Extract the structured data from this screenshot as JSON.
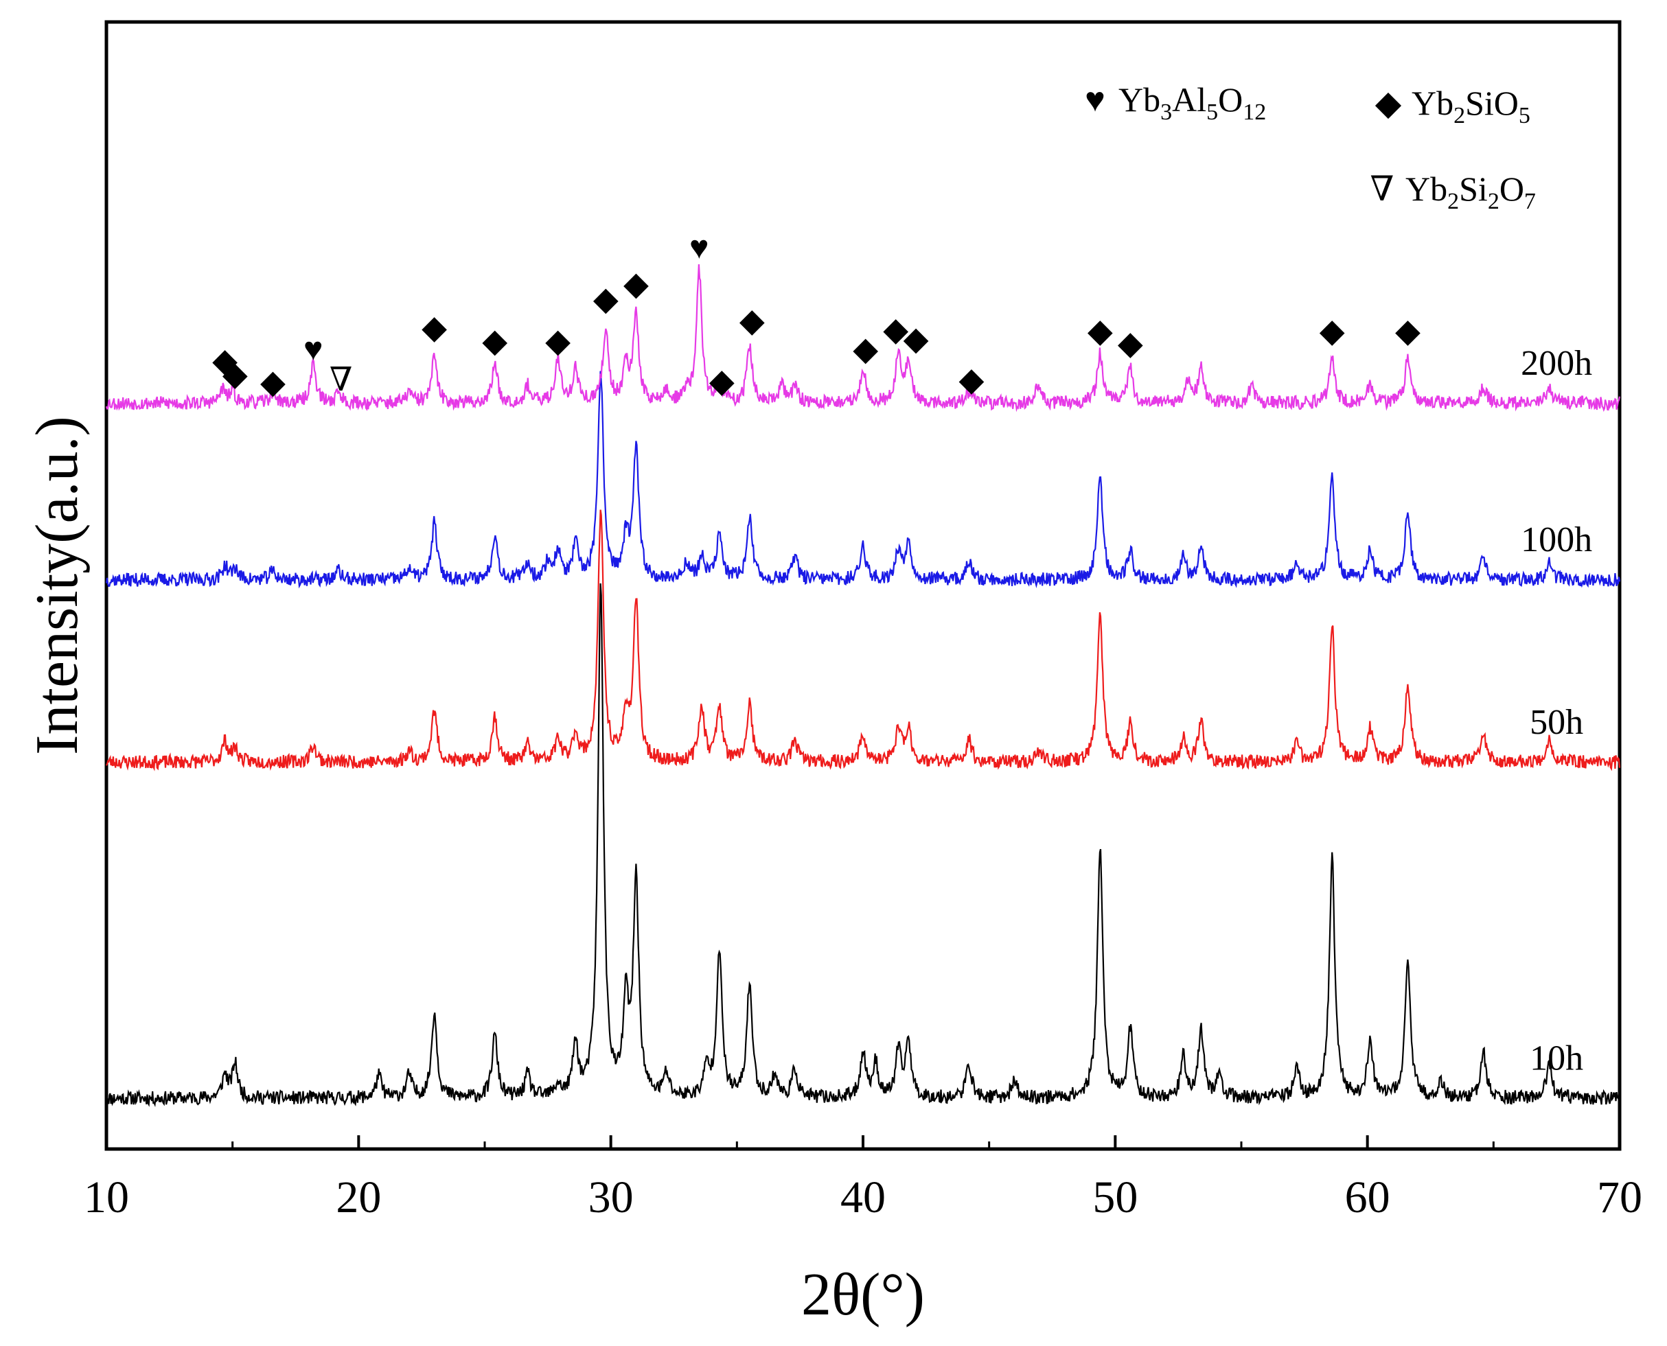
{
  "chart_data": {
    "type": "line",
    "title": "",
    "xlabel": "2θ(°)",
    "ylabel": "Intensity(a.u.)",
    "xlim": [
      10,
      70
    ],
    "x_ticks": [
      10,
      20,
      30,
      40,
      50,
      60,
      70
    ],
    "grid": false,
    "legend": [
      {
        "symbol": "♥",
        "name": "Yb3Al5O12",
        "parts": [
          [
            "Yb",
            ""
          ],
          [
            "3",
            "sub"
          ],
          [
            "Al",
            ""
          ],
          [
            "5",
            "sub"
          ],
          [
            "O",
            ""
          ],
          [
            "12",
            "sub"
          ]
        ]
      },
      {
        "symbol": "◆",
        "name": "Yb2SiO5",
        "parts": [
          [
            "Yb",
            ""
          ],
          [
            "2",
            "sub"
          ],
          [
            "SiO",
            ""
          ],
          [
            "5",
            "sub"
          ]
        ]
      },
      {
        "symbol": "∇",
        "name": "Yb2Si2O7",
        "parts": [
          [
            "Yb",
            ""
          ],
          [
            "2",
            "sub"
          ],
          [
            "Si",
            ""
          ],
          [
            "2",
            "sub"
          ],
          [
            "O",
            ""
          ],
          [
            "7",
            "sub"
          ]
        ]
      }
    ],
    "series": [
      {
        "name": "10h",
        "color": "#000000",
        "baseline": 0.0,
        "noise": 0.006,
        "seed": 11,
        "peaks": [
          [
            14.7,
            0.02
          ],
          [
            15.1,
            0.03
          ],
          [
            20.8,
            0.02
          ],
          [
            22.0,
            0.02
          ],
          [
            23.0,
            0.075
          ],
          [
            25.4,
            0.055
          ],
          [
            26.7,
            0.02
          ],
          [
            27.9,
            0.01
          ],
          [
            28.6,
            0.045
          ],
          [
            29.6,
            0.45
          ],
          [
            30.6,
            0.08
          ],
          [
            31.0,
            0.19
          ],
          [
            32.2,
            0.02
          ],
          [
            33.8,
            0.025
          ],
          [
            34.3,
            0.13
          ],
          [
            35.5,
            0.1
          ],
          [
            36.5,
            0.02
          ],
          [
            37.3,
            0.025
          ],
          [
            40.0,
            0.04
          ],
          [
            40.5,
            0.03
          ],
          [
            41.4,
            0.04
          ],
          [
            41.8,
            0.05
          ],
          [
            44.2,
            0.03
          ],
          [
            46.0,
            0.015
          ],
          [
            49.4,
            0.22
          ],
          [
            50.6,
            0.06
          ],
          [
            52.7,
            0.035
          ],
          [
            53.4,
            0.06
          ],
          [
            54.1,
            0.02
          ],
          [
            57.2,
            0.025
          ],
          [
            58.6,
            0.21
          ],
          [
            60.1,
            0.05
          ],
          [
            61.6,
            0.12
          ],
          [
            62.9,
            0.015
          ],
          [
            64.6,
            0.04
          ],
          [
            67.2,
            0.03
          ]
        ]
      },
      {
        "name": "50h",
        "color": "#ee1c1c",
        "baseline": 0.295,
        "noise": 0.006,
        "seed": 23,
        "peaks": [
          [
            14.7,
            0.018
          ],
          [
            15.1,
            0.012
          ],
          [
            18.2,
            0.015
          ],
          [
            22.0,
            0.01
          ],
          [
            23.0,
            0.045
          ],
          [
            25.4,
            0.04
          ],
          [
            26.7,
            0.015
          ],
          [
            27.9,
            0.02
          ],
          [
            28.6,
            0.025
          ],
          [
            29.6,
            0.22
          ],
          [
            30.6,
            0.04
          ],
          [
            31.0,
            0.14
          ],
          [
            33.6,
            0.05
          ],
          [
            34.3,
            0.05
          ],
          [
            35.5,
            0.05
          ],
          [
            37.3,
            0.02
          ],
          [
            40.0,
            0.025
          ],
          [
            41.4,
            0.03
          ],
          [
            41.8,
            0.03
          ],
          [
            44.2,
            0.02
          ],
          [
            47.0,
            0.01
          ],
          [
            49.4,
            0.13
          ],
          [
            50.6,
            0.035
          ],
          [
            52.7,
            0.02
          ],
          [
            53.4,
            0.035
          ],
          [
            57.2,
            0.015
          ],
          [
            58.6,
            0.12
          ],
          [
            60.1,
            0.03
          ],
          [
            61.6,
            0.07
          ],
          [
            64.6,
            0.025
          ],
          [
            67.2,
            0.02
          ]
        ]
      },
      {
        "name": "100h",
        "color": "#1a1ae6",
        "baseline": 0.455,
        "noise": 0.006,
        "seed": 37,
        "peaks": [
          [
            14.7,
            0.012
          ],
          [
            15.1,
            0.01
          ],
          [
            16.6,
            0.008
          ],
          [
            19.2,
            0.008
          ],
          [
            22.0,
            0.01
          ],
          [
            23.0,
            0.05
          ],
          [
            25.4,
            0.04
          ],
          [
            26.7,
            0.015
          ],
          [
            27.5,
            0.015
          ],
          [
            27.9,
            0.025
          ],
          [
            28.6,
            0.03
          ],
          [
            29.6,
            0.18
          ],
          [
            30.6,
            0.035
          ],
          [
            31.0,
            0.115
          ],
          [
            33.0,
            0.015
          ],
          [
            33.6,
            0.02
          ],
          [
            34.3,
            0.04
          ],
          [
            35.5,
            0.055
          ],
          [
            37.3,
            0.02
          ],
          [
            40.0,
            0.03
          ],
          [
            41.4,
            0.025
          ],
          [
            41.8,
            0.035
          ],
          [
            44.2,
            0.015
          ],
          [
            49.4,
            0.09
          ],
          [
            50.6,
            0.025
          ],
          [
            52.7,
            0.02
          ],
          [
            53.4,
            0.03
          ],
          [
            57.2,
            0.015
          ],
          [
            58.6,
            0.09
          ],
          [
            60.1,
            0.025
          ],
          [
            61.6,
            0.06
          ],
          [
            64.6,
            0.02
          ],
          [
            67.2,
            0.015
          ]
        ]
      },
      {
        "name": "200h",
        "color": "#e63ae6",
        "baseline": 0.61,
        "noise": 0.006,
        "seed": 53,
        "peaks": [
          [
            14.6,
            0.012
          ],
          [
            15.0,
            0.01
          ],
          [
            16.6,
            0.01
          ],
          [
            18.2,
            0.035
          ],
          [
            19.2,
            0.01
          ],
          [
            22.0,
            0.01
          ],
          [
            23.0,
            0.04
          ],
          [
            25.4,
            0.035
          ],
          [
            26.7,
            0.015
          ],
          [
            27.9,
            0.04
          ],
          [
            28.6,
            0.03
          ],
          [
            29.8,
            0.065
          ],
          [
            30.6,
            0.035
          ],
          [
            31.0,
            0.075
          ],
          [
            32.2,
            0.01
          ],
          [
            33.0,
            0.01
          ],
          [
            33.5,
            0.115
          ],
          [
            34.3,
            0.015
          ],
          [
            35.5,
            0.05
          ],
          [
            36.8,
            0.015
          ],
          [
            37.3,
            0.015
          ],
          [
            40.0,
            0.03
          ],
          [
            41.4,
            0.045
          ],
          [
            41.8,
            0.035
          ],
          [
            44.2,
            0.01
          ],
          [
            46.9,
            0.015
          ],
          [
            49.4,
            0.045
          ],
          [
            50.6,
            0.03
          ],
          [
            52.9,
            0.02
          ],
          [
            53.4,
            0.03
          ],
          [
            55.4,
            0.015
          ],
          [
            58.6,
            0.04
          ],
          [
            60.1,
            0.015
          ],
          [
            61.6,
            0.04
          ],
          [
            64.6,
            0.015
          ],
          [
            67.2,
            0.015
          ]
        ]
      }
    ],
    "peak_markers": [
      {
        "x": 14.7,
        "y": 0.638,
        "symbol": "◆"
      },
      {
        "x": 15.1,
        "y": 0.626,
        "symbol": "◆"
      },
      {
        "x": 16.6,
        "y": 0.619,
        "symbol": "◆"
      },
      {
        "x": 18.2,
        "y": 0.648,
        "symbol": "♥"
      },
      {
        "x": 19.3,
        "y": 0.621,
        "symbol": "∇"
      },
      {
        "x": 23.0,
        "y": 0.667,
        "symbol": "◆"
      },
      {
        "x": 25.4,
        "y": 0.655,
        "symbol": "◆"
      },
      {
        "x": 27.9,
        "y": 0.655,
        "symbol": "◆"
      },
      {
        "x": 29.8,
        "y": 0.692,
        "symbol": "◆"
      },
      {
        "x": 31.0,
        "y": 0.705,
        "symbol": "◆"
      },
      {
        "x": 33.5,
        "y": 0.737,
        "symbol": "♥"
      },
      {
        "x": 34.4,
        "y": 0.62,
        "symbol": "◆"
      },
      {
        "x": 35.6,
        "y": 0.673,
        "symbol": "◆"
      },
      {
        "x": 40.1,
        "y": 0.648,
        "symbol": "◆"
      },
      {
        "x": 41.3,
        "y": 0.665,
        "symbol": "◆"
      },
      {
        "x": 42.1,
        "y": 0.657,
        "symbol": "◆"
      },
      {
        "x": 44.3,
        "y": 0.621,
        "symbol": "◆"
      },
      {
        "x": 49.4,
        "y": 0.664,
        "symbol": "◆"
      },
      {
        "x": 50.6,
        "y": 0.653,
        "symbol": "◆"
      },
      {
        "x": 58.6,
        "y": 0.664,
        "symbol": "◆"
      },
      {
        "x": 61.6,
        "y": 0.664,
        "symbol": "◆"
      }
    ]
  }
}
